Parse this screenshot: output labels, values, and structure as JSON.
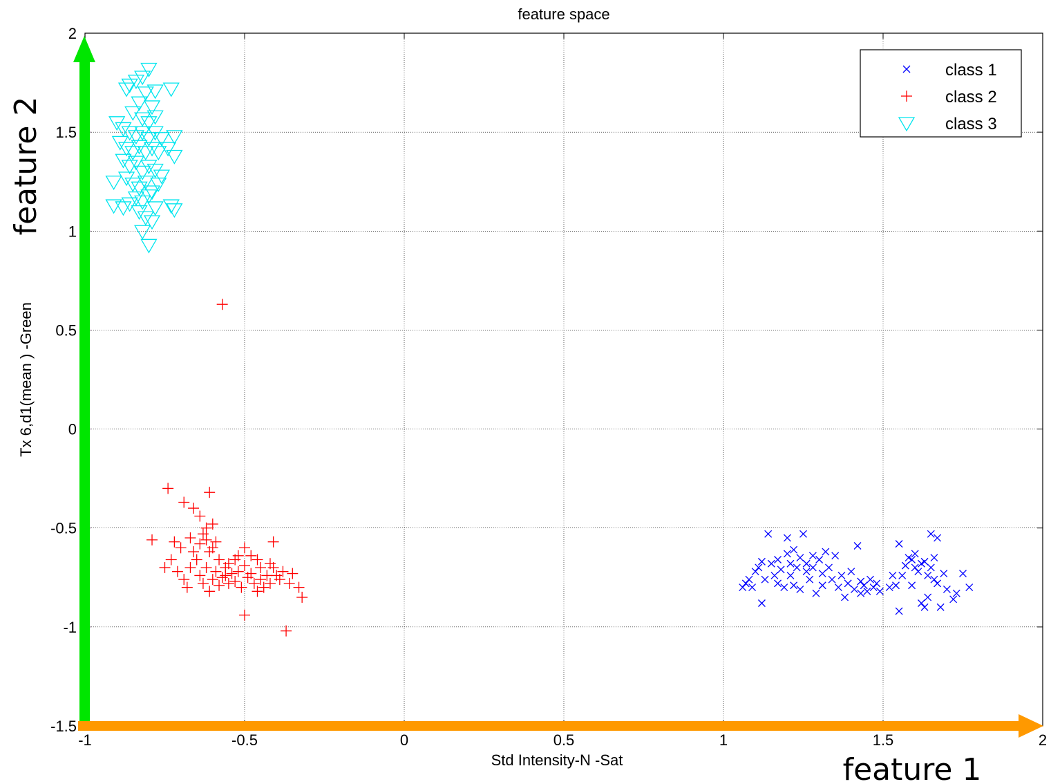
{
  "chart_data": {
    "type": "scatter",
    "title": "feature space",
    "xlabel": "Std Intensity-N -Sat",
    "ylabel": "Tx 6,d1(mean )  -Green",
    "xlim": [
      -1,
      2
    ],
    "ylim": [
      -1.5,
      2
    ],
    "x_ticks": [
      "-1",
      "-0.5",
      "0",
      "0.5",
      "1",
      "1.5",
      "2"
    ],
    "y_ticks": [
      "-1.5",
      "-1",
      "-0.5",
      "0",
      "0.5",
      "1",
      "1.5",
      "2"
    ],
    "grid": true,
    "legend_position": "top-right",
    "annotations": {
      "x_arrow_label": "feature 1",
      "y_arrow_label": "feature 2",
      "x_arrow_color": "#ff9900",
      "y_arrow_color": "#00e600"
    },
    "series": [
      {
        "name": "class 1",
        "marker": "x",
        "color": "#0000ff",
        "points": [
          [
            1.06,
            -0.8
          ],
          [
            1.07,
            -0.78
          ],
          [
            1.08,
            -0.76
          ],
          [
            1.09,
            -0.8
          ],
          [
            1.1,
            -0.72
          ],
          [
            1.11,
            -0.7
          ],
          [
            1.12,
            -0.67
          ],
          [
            1.12,
            -0.88
          ],
          [
            1.13,
            -0.76
          ],
          [
            1.14,
            -0.53
          ],
          [
            1.15,
            -0.68
          ],
          [
            1.16,
            -0.74
          ],
          [
            1.17,
            -0.78
          ],
          [
            1.17,
            -0.66
          ],
          [
            1.18,
            -0.71
          ],
          [
            1.19,
            -0.8
          ],
          [
            1.2,
            -0.63
          ],
          [
            1.2,
            -0.55
          ],
          [
            1.21,
            -0.68
          ],
          [
            1.21,
            -0.74
          ],
          [
            1.22,
            -0.61
          ],
          [
            1.22,
            -0.79
          ],
          [
            1.23,
            -0.7
          ],
          [
            1.24,
            -0.65
          ],
          [
            1.24,
            -0.81
          ],
          [
            1.25,
            -0.53
          ],
          [
            1.26,
            -0.72
          ],
          [
            1.26,
            -0.68
          ],
          [
            1.27,
            -0.76
          ],
          [
            1.28,
            -0.64
          ],
          [
            1.28,
            -0.7
          ],
          [
            1.29,
            -0.83
          ],
          [
            1.3,
            -0.66
          ],
          [
            1.31,
            -0.73
          ],
          [
            1.31,
            -0.79
          ],
          [
            1.32,
            -0.62
          ],
          [
            1.33,
            -0.7
          ],
          [
            1.34,
            -0.76
          ],
          [
            1.35,
            -0.64
          ],
          [
            1.36,
            -0.8
          ],
          [
            1.37,
            -0.74
          ],
          [
            1.38,
            -0.85
          ],
          [
            1.39,
            -0.78
          ],
          [
            1.4,
            -0.72
          ],
          [
            1.41,
            -0.81
          ],
          [
            1.42,
            -0.59
          ],
          [
            1.43,
            -0.77
          ],
          [
            1.43,
            -0.83
          ],
          [
            1.44,
            -0.79
          ],
          [
            1.45,
            -0.82
          ],
          [
            1.46,
            -0.76
          ],
          [
            1.47,
            -0.8
          ],
          [
            1.48,
            -0.78
          ],
          [
            1.49,
            -0.82
          ],
          [
            1.52,
            -0.8
          ],
          [
            1.53,
            -0.74
          ],
          [
            1.54,
            -0.79
          ],
          [
            1.55,
            -0.58
          ],
          [
            1.55,
            -0.92
          ],
          [
            1.56,
            -0.74
          ],
          [
            1.57,
            -0.69
          ],
          [
            1.58,
            -0.65
          ],
          [
            1.59,
            -0.79
          ],
          [
            1.59,
            -0.66
          ],
          [
            1.6,
            -0.7
          ],
          [
            1.6,
            -0.63
          ],
          [
            1.61,
            -0.72
          ],
          [
            1.62,
            -0.68
          ],
          [
            1.62,
            -0.88
          ],
          [
            1.63,
            -0.9
          ],
          [
            1.63,
            -0.67
          ],
          [
            1.64,
            -0.74
          ],
          [
            1.64,
            -0.85
          ],
          [
            1.65,
            -0.7
          ],
          [
            1.65,
            -0.53
          ],
          [
            1.66,
            -0.76
          ],
          [
            1.66,
            -0.65
          ],
          [
            1.67,
            -0.55
          ],
          [
            1.67,
            -0.78
          ],
          [
            1.68,
            -0.9
          ],
          [
            1.69,
            -0.73
          ],
          [
            1.7,
            -0.81
          ],
          [
            1.72,
            -0.86
          ],
          [
            1.73,
            -0.83
          ],
          [
            1.75,
            -0.73
          ],
          [
            1.77,
            -0.8
          ]
        ]
      },
      {
        "name": "class 2",
        "marker": "+",
        "color": "#ff0000",
        "points": [
          [
            -0.57,
            0.63
          ],
          [
            -0.74,
            -0.3
          ],
          [
            -0.61,
            -0.32
          ],
          [
            -0.69,
            -0.37
          ],
          [
            -0.66,
            -0.4
          ],
          [
            -0.64,
            -0.44
          ],
          [
            -0.6,
            -0.48
          ],
          [
            -0.62,
            -0.5
          ],
          [
            -0.79,
            -0.56
          ],
          [
            -0.72,
            -0.57
          ],
          [
            -0.67,
            -0.55
          ],
          [
            -0.63,
            -0.53
          ],
          [
            -0.59,
            -0.57
          ],
          [
            -0.7,
            -0.6
          ],
          [
            -0.66,
            -0.62
          ],
          [
            -0.61,
            -0.62
          ],
          [
            -0.58,
            -0.66
          ],
          [
            -0.55,
            -0.68
          ],
          [
            -0.52,
            -0.64
          ],
          [
            -0.5,
            -0.6
          ],
          [
            -0.48,
            -0.64
          ],
          [
            -0.46,
            -0.66
          ],
          [
            -0.45,
            -0.7
          ],
          [
            -0.42,
            -0.68
          ],
          [
            -0.41,
            -0.57
          ],
          [
            -0.4,
            -0.74
          ],
          [
            -0.38,
            -0.72
          ],
          [
            -0.36,
            -0.78
          ],
          [
            -0.35,
            -0.73
          ],
          [
            -0.33,
            -0.8
          ],
          [
            -0.32,
            -0.85
          ],
          [
            -0.75,
            -0.7
          ],
          [
            -0.73,
            -0.66
          ],
          [
            -0.71,
            -0.72
          ],
          [
            -0.69,
            -0.76
          ],
          [
            -0.68,
            -0.8
          ],
          [
            -0.67,
            -0.7
          ],
          [
            -0.65,
            -0.66
          ],
          [
            -0.64,
            -0.74
          ],
          [
            -0.63,
            -0.78
          ],
          [
            -0.62,
            -0.7
          ],
          [
            -0.61,
            -0.82
          ],
          [
            -0.6,
            -0.76
          ],
          [
            -0.59,
            -0.72
          ],
          [
            -0.58,
            -0.79
          ],
          [
            -0.57,
            -0.75
          ],
          [
            -0.56,
            -0.7
          ],
          [
            -0.55,
            -0.78
          ],
          [
            -0.54,
            -0.73
          ],
          [
            -0.53,
            -0.77
          ],
          [
            -0.52,
            -0.72
          ],
          [
            -0.51,
            -0.8
          ],
          [
            -0.5,
            -0.69
          ],
          [
            -0.49,
            -0.75
          ],
          [
            -0.48,
            -0.73
          ],
          [
            -0.47,
            -0.78
          ],
          [
            -0.46,
            -0.82
          ],
          [
            -0.45,
            -0.76
          ],
          [
            -0.44,
            -0.8
          ],
          [
            -0.43,
            -0.74
          ],
          [
            -0.42,
            -0.78
          ],
          [
            -0.41,
            -0.7
          ],
          [
            -0.39,
            -0.76
          ],
          [
            -0.5,
            -0.94
          ],
          [
            -0.37,
            -1.02
          ],
          [
            -0.62,
            -0.56
          ],
          [
            -0.6,
            -0.6
          ],
          [
            -0.64,
            -0.58
          ],
          [
            -0.53,
            -0.66
          ],
          [
            -0.56,
            -0.74
          ]
        ]
      },
      {
        "name": "class 3",
        "marker": "triangle-down",
        "color": "#00e5ee",
        "points": [
          [
            -0.8,
            1.82
          ],
          [
            -0.82,
            1.78
          ],
          [
            -0.84,
            1.76
          ],
          [
            -0.86,
            1.74
          ],
          [
            -0.87,
            1.72
          ],
          [
            -0.81,
            1.7
          ],
          [
            -0.78,
            1.71
          ],
          [
            -0.73,
            1.72
          ],
          [
            -0.83,
            1.65
          ],
          [
            -0.79,
            1.63
          ],
          [
            -0.85,
            1.6
          ],
          [
            -0.82,
            1.57
          ],
          [
            -0.8,
            1.55
          ],
          [
            -0.78,
            1.58
          ],
          [
            -0.9,
            1.55
          ],
          [
            -0.88,
            1.52
          ],
          [
            -0.86,
            1.5
          ],
          [
            -0.84,
            1.48
          ],
          [
            -0.82,
            1.5
          ],
          [
            -0.8,
            1.47
          ],
          [
            -0.78,
            1.5
          ],
          [
            -0.76,
            1.47
          ],
          [
            -0.72,
            1.48
          ],
          [
            -0.89,
            1.45
          ],
          [
            -0.87,
            1.42
          ],
          [
            -0.85,
            1.4
          ],
          [
            -0.83,
            1.43
          ],
          [
            -0.81,
            1.4
          ],
          [
            -0.79,
            1.42
          ],
          [
            -0.77,
            1.4
          ],
          [
            -0.74,
            1.42
          ],
          [
            -0.72,
            1.38
          ],
          [
            -0.88,
            1.36
          ],
          [
            -0.86,
            1.33
          ],
          [
            -0.84,
            1.35
          ],
          [
            -0.82,
            1.3
          ],
          [
            -0.8,
            1.33
          ],
          [
            -0.78,
            1.31
          ],
          [
            -0.76,
            1.28
          ],
          [
            -0.91,
            1.25
          ],
          [
            -0.87,
            1.27
          ],
          [
            -0.85,
            1.24
          ],
          [
            -0.83,
            1.22
          ],
          [
            -0.81,
            1.25
          ],
          [
            -0.79,
            1.2
          ],
          [
            -0.77,
            1.24
          ],
          [
            -0.84,
            1.17
          ],
          [
            -0.82,
            1.15
          ],
          [
            -0.8,
            1.18
          ],
          [
            -0.78,
            1.12
          ],
          [
            -0.91,
            1.13
          ],
          [
            -0.88,
            1.12
          ],
          [
            -0.86,
            1.14
          ],
          [
            -0.83,
            1.1
          ],
          [
            -0.81,
            1.07
          ],
          [
            -0.79,
            1.05
          ],
          [
            -0.73,
            1.13
          ],
          [
            -0.72,
            1.11
          ],
          [
            -0.82,
            1.0
          ],
          [
            -0.8,
            0.93
          ]
        ]
      }
    ]
  }
}
